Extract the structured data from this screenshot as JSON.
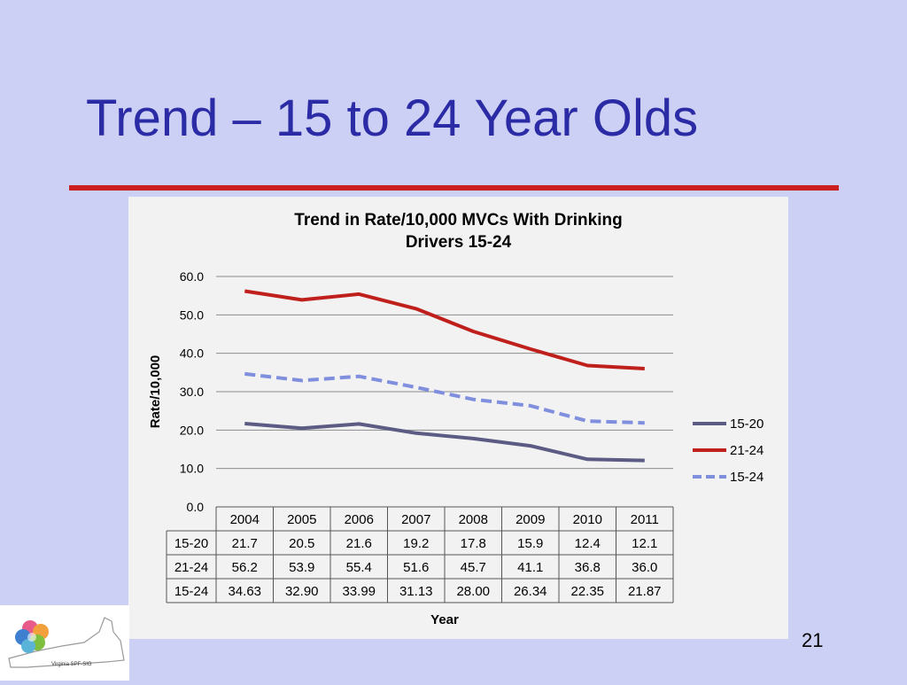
{
  "slide": {
    "title": "Trend – 15 to 24 Year Olds",
    "page_number": "21",
    "logo_text": "Virginia SPF-SIG",
    "rule_color": "#cc1f1f",
    "title_color": "#2b2ba6"
  },
  "chart_data": {
    "type": "line",
    "title_line1": "Trend in Rate/10,000 MVCs With Drinking",
    "title_line2": "Drivers 15-24",
    "xlabel": "Year",
    "ylabel": "Rate/10,000",
    "ylim": [
      0,
      60
    ],
    "yticks": [
      "0.0",
      "10.0",
      "20.0",
      "30.0",
      "40.0",
      "50.0",
      "60.0"
    ],
    "grid": true,
    "legend_position": "right",
    "categories": [
      "2004",
      "2005",
      "2006",
      "2007",
      "2008",
      "2009",
      "2010",
      "2011"
    ],
    "series": [
      {
        "name": "15-20",
        "color": "#5b5b84",
        "dash": false,
        "values": [
          21.7,
          20.5,
          21.6,
          19.2,
          17.8,
          15.9,
          12.4,
          12.1
        ],
        "labels": [
          "21.7",
          "20.5",
          "21.6",
          "19.2",
          "17.8",
          "15.9",
          "12.4",
          "12.1"
        ]
      },
      {
        "name": "21-24",
        "color": "#c0201c",
        "dash": false,
        "values": [
          56.2,
          53.9,
          55.4,
          51.6,
          45.7,
          41.1,
          36.8,
          36.0
        ],
        "labels": [
          "56.2",
          "53.9",
          "55.4",
          "51.6",
          "45.7",
          "41.1",
          "36.8",
          "36.0"
        ]
      },
      {
        "name": "15-24",
        "color": "#7f8fde",
        "dash": true,
        "values": [
          34.63,
          32.9,
          33.99,
          31.13,
          28.0,
          26.34,
          22.35,
          21.87
        ],
        "labels": [
          "34.63",
          "32.90",
          "33.99",
          "31.13",
          "28.00",
          "26.34",
          "22.35",
          "21.87"
        ]
      }
    ]
  }
}
